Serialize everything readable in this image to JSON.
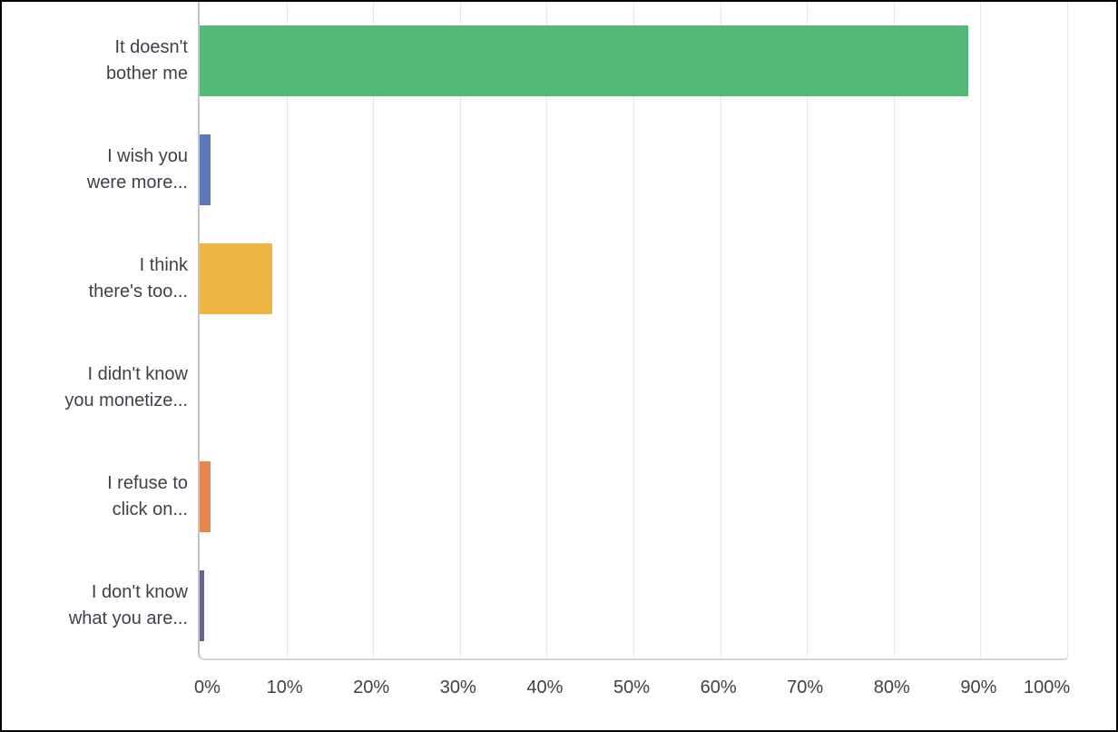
{
  "chart_data": {
    "type": "bar",
    "orientation": "horizontal",
    "unit": "%",
    "xlim": [
      0,
      100
    ],
    "grid": true,
    "legend": false,
    "x_ticks": [
      "0%",
      "10%",
      "20%",
      "30%",
      "40%",
      "50%",
      "60%",
      "70%",
      "80%",
      "90%",
      "100%"
    ],
    "categories": [
      "It doesn't bother me",
      "I wish you were more...",
      "I think there's too...",
      "I didn't know you monetize...",
      "I refuse to click on...",
      "I don't know what you are..."
    ],
    "values": [
      88.6,
      1.3,
      8.4,
      0,
      1.3,
      0.5
    ],
    "bars": [
      {
        "label_lines": [
          "It doesn't",
          "bother me"
        ],
        "value": 88.6,
        "color": "#54b878"
      },
      {
        "label_lines": [
          "I wish you",
          "were more..."
        ],
        "value": 1.3,
        "color": "#5b79b8"
      },
      {
        "label_lines": [
          "I think",
          "there's too..."
        ],
        "value": 8.4,
        "color": "#edb544"
      },
      {
        "label_lines": [
          "I didn't know",
          "you monetize..."
        ],
        "value": 0,
        "color": null
      },
      {
        "label_lines": [
          "I refuse to",
          "click on..."
        ],
        "value": 1.3,
        "color": "#e8864f"
      },
      {
        "label_lines": [
          "I don't know",
          "what you are..."
        ],
        "value": 0.5,
        "color": "#6c5f8d"
      }
    ],
    "colors": {
      "axis_line": "#c5c5c5",
      "gridline": "#e8e8e8",
      "text": "#3d424a",
      "background": "#ffffff",
      "frame_border": "#000000"
    }
  }
}
